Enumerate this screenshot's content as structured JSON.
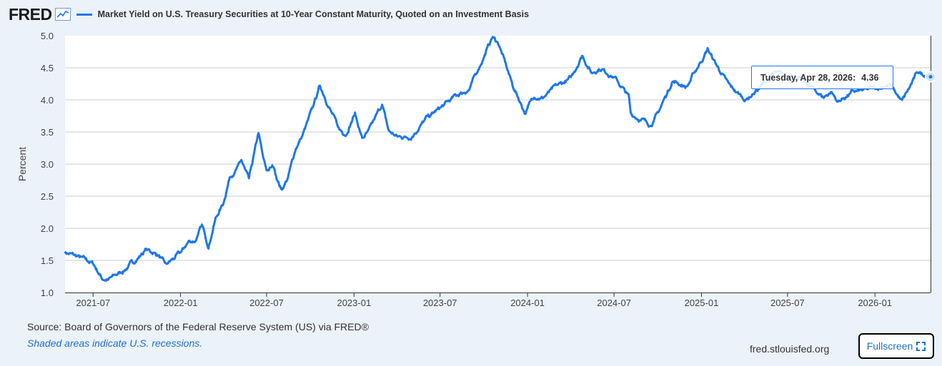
{
  "header": {
    "logo": "FRED",
    "title": "Market Yield on U.S. Treasury Securities at 10-Year Constant Maturity, Quoted on an Investment Basis"
  },
  "chart_data": {
    "type": "line",
    "title": "Market Yield on U.S. Treasury Securities at 10-Year Constant Maturity, Quoted on an Investment Basis",
    "xlabel": "",
    "ylabel": "Percent",
    "ylim": [
      1.0,
      5.0
    ],
    "yticks": [
      "5.0",
      "4.5",
      "4.0",
      "3.5",
      "3.0",
      "2.5",
      "2.0",
      "1.5",
      "1.0"
    ],
    "xticks": [
      "2021-07",
      "2022-01",
      "2022-07",
      "2023-01",
      "2023-07",
      "2024-01",
      "2024-07",
      "2025-01",
      "2025-07",
      "2026-01"
    ],
    "grid": true,
    "line_color": "#1f77e8",
    "series": [
      {
        "x": [
          "2021-05-03",
          "2021-06-01",
          "2021-07-01",
          "2021-07-20",
          "2021-08-02",
          "2021-09-01",
          "2021-10-01",
          "2021-10-20",
          "2021-11-15",
          "2021-12-01",
          "2022-01-03",
          "2022-01-18",
          "2022-02-01",
          "2022-02-15",
          "2022-03-01",
          "2022-03-15",
          "2022-04-01",
          "2022-04-15",
          "2022-05-01",
          "2022-05-09",
          "2022-05-25",
          "2022-06-14",
          "2022-06-24",
          "2022-07-01",
          "2022-07-15",
          "2022-08-01",
          "2022-08-15",
          "2022-09-01",
          "2022-09-15",
          "2022-10-03",
          "2022-10-21",
          "2022-11-01",
          "2022-11-15",
          "2022-12-01",
          "2022-12-15",
          "2023-01-03",
          "2023-01-18",
          "2023-02-01",
          "2023-03-01",
          "2023-03-15",
          "2023-04-03",
          "2023-05-01",
          "2023-06-01",
          "2023-07-03",
          "2023-08-01",
          "2023-09-01",
          "2023-10-02",
          "2023-10-19",
          "2023-11-01",
          "2023-12-01",
          "2023-12-27",
          "2024-01-15",
          "2024-02-01",
          "2024-03-01",
          "2024-04-01",
          "2024-04-25",
          "2024-05-15",
          "2024-06-01",
          "2024-07-01",
          "2024-08-01",
          "2024-08-05",
          "2024-09-16",
          "2024-10-01",
          "2024-11-01",
          "2024-12-01",
          "2025-01-14",
          "2025-02-01",
          "2025-03-01",
          "2025-04-04",
          "2025-05-01",
          "2025-06-01",
          "2025-07-01",
          "2025-08-01",
          "2025-09-15",
          "2025-10-01",
          "2025-10-15",
          "2025-11-15",
          "2025-12-15",
          "2026-01-15",
          "2026-02-01",
          "2026-02-27",
          "2026-03-20",
          "2026-04-01",
          "2026-04-28"
        ],
        "values": [
          1.63,
          1.55,
          1.45,
          1.22,
          1.2,
          1.33,
          1.52,
          1.67,
          1.59,
          1.42,
          1.63,
          1.79,
          1.81,
          2.03,
          1.73,
          2.14,
          2.39,
          2.82,
          2.94,
          3.05,
          2.74,
          3.48,
          3.07,
          2.89,
          2.96,
          2.6,
          2.79,
          3.26,
          3.45,
          3.8,
          4.22,
          4.05,
          3.8,
          3.53,
          3.48,
          3.79,
          3.4,
          3.5,
          3.93,
          3.51,
          3.42,
          3.43,
          3.7,
          3.88,
          4.05,
          4.17,
          4.69,
          4.98,
          4.88,
          4.22,
          3.8,
          4.07,
          4.03,
          4.2,
          4.33,
          4.7,
          4.42,
          4.5,
          4.36,
          4.05,
          3.78,
          3.62,
          3.78,
          4.3,
          4.2,
          4.79,
          4.55,
          4.21,
          4.0,
          4.17,
          4.41,
          4.38,
          4.3,
          4.04,
          4.13,
          3.97,
          4.12,
          4.15,
          4.2,
          4.24,
          3.97,
          4.26,
          4.43,
          4.36
        ]
      }
    ]
  },
  "tooltip": {
    "date": "Tuesday, Apr 28, 2026:",
    "value": "4.36"
  },
  "footer": {
    "source": "Source: Board of Governors of the Federal Reserve System (US) via FRED®",
    "note": "Shaded areas indicate U.S. recessions.",
    "site": "fred.stlouisfed.org",
    "fullscreen": "Fullscreen"
  }
}
